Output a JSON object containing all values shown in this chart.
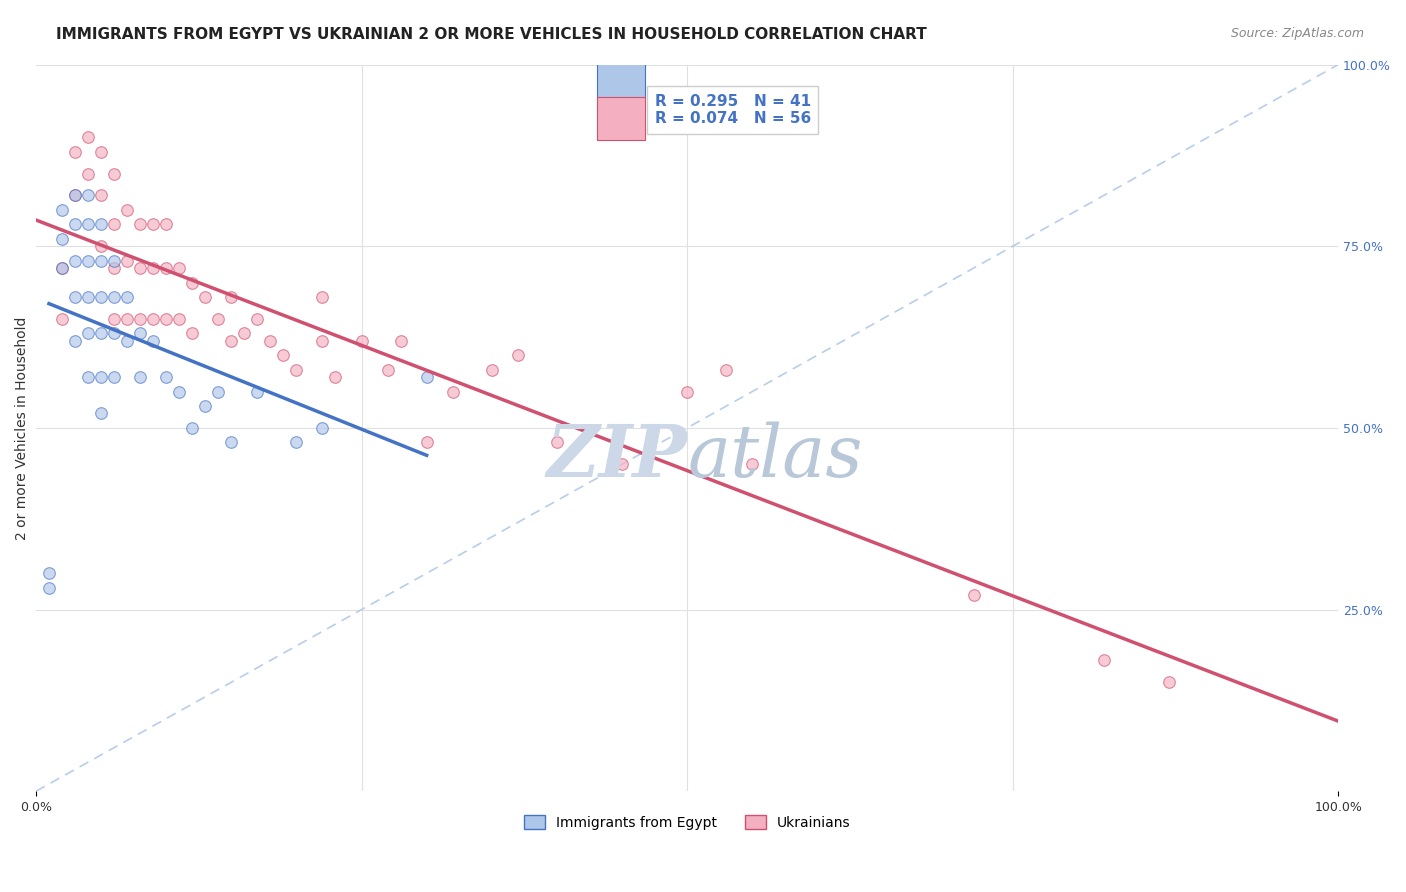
{
  "title": "IMMIGRANTS FROM EGYPT VS UKRAINIAN 2 OR MORE VEHICLES IN HOUSEHOLD CORRELATION CHART",
  "source": "Source: ZipAtlas.com",
  "ylabel": "2 or more Vehicles in Household",
  "xlim": [
    0.0,
    1.0
  ],
  "ylim": [
    0.0,
    1.0
  ],
  "ytick_labels_right": [
    "100.0%",
    "75.0%",
    "50.0%",
    "25.0%"
  ],
  "ytick_positions": [
    1.0,
    0.75,
    0.5,
    0.25
  ],
  "grid_color": "#e0e0e0",
  "background_color": "#ffffff",
  "egypt_color": "#aec6e8",
  "ukraine_color": "#f4afc0",
  "egypt_line_color": "#4472c4",
  "ukraine_line_color": "#d05070",
  "dashed_line_color": "#b0c8e8",
  "legend_egypt_label": "Immigrants from Egypt",
  "legend_ukraine_label": "Ukrainians",
  "egypt_R": 0.295,
  "egypt_N": 41,
  "ukraine_R": 0.074,
  "ukraine_N": 56,
  "egypt_scatter_x": [
    0.01,
    0.01,
    0.02,
    0.02,
    0.02,
    0.03,
    0.03,
    0.03,
    0.03,
    0.03,
    0.04,
    0.04,
    0.04,
    0.04,
    0.04,
    0.04,
    0.05,
    0.05,
    0.05,
    0.05,
    0.05,
    0.05,
    0.06,
    0.06,
    0.06,
    0.06,
    0.07,
    0.07,
    0.08,
    0.08,
    0.09,
    0.1,
    0.11,
    0.12,
    0.13,
    0.14,
    0.15,
    0.17,
    0.2,
    0.22,
    0.3
  ],
  "egypt_scatter_y": [
    0.3,
    0.28,
    0.8,
    0.76,
    0.72,
    0.82,
    0.78,
    0.73,
    0.68,
    0.62,
    0.82,
    0.78,
    0.73,
    0.68,
    0.63,
    0.57,
    0.78,
    0.73,
    0.68,
    0.63,
    0.57,
    0.52,
    0.73,
    0.68,
    0.63,
    0.57,
    0.68,
    0.62,
    0.63,
    0.57,
    0.62,
    0.57,
    0.55,
    0.5,
    0.53,
    0.55,
    0.48,
    0.55,
    0.48,
    0.5,
    0.57
  ],
  "ukraine_scatter_x": [
    0.02,
    0.02,
    0.03,
    0.03,
    0.04,
    0.04,
    0.05,
    0.05,
    0.05,
    0.06,
    0.06,
    0.06,
    0.06,
    0.07,
    0.07,
    0.07,
    0.08,
    0.08,
    0.08,
    0.09,
    0.09,
    0.09,
    0.1,
    0.1,
    0.1,
    0.11,
    0.11,
    0.12,
    0.12,
    0.13,
    0.14,
    0.15,
    0.15,
    0.16,
    0.17,
    0.18,
    0.19,
    0.2,
    0.22,
    0.22,
    0.23,
    0.25,
    0.27,
    0.28,
    0.3,
    0.32,
    0.35,
    0.37,
    0.4,
    0.45,
    0.5,
    0.53,
    0.55,
    0.72,
    0.82,
    0.87
  ],
  "ukraine_scatter_y": [
    0.72,
    0.65,
    0.88,
    0.82,
    0.9,
    0.85,
    0.88,
    0.82,
    0.75,
    0.85,
    0.78,
    0.72,
    0.65,
    0.8,
    0.73,
    0.65,
    0.78,
    0.72,
    0.65,
    0.78,
    0.72,
    0.65,
    0.78,
    0.72,
    0.65,
    0.72,
    0.65,
    0.7,
    0.63,
    0.68,
    0.65,
    0.68,
    0.62,
    0.63,
    0.65,
    0.62,
    0.6,
    0.58,
    0.68,
    0.62,
    0.57,
    0.62,
    0.58,
    0.62,
    0.48,
    0.55,
    0.58,
    0.6,
    0.48,
    0.45,
    0.55,
    0.58,
    0.45,
    0.27,
    0.18,
    0.15
  ],
  "title_fontsize": 11,
  "label_fontsize": 10,
  "tick_fontsize": 9,
  "legend_fontsize": 10,
  "marker_size": 70,
  "marker_alpha": 0.65,
  "watermark_zip_color": "#ccd8e8",
  "watermark_atlas_color": "#b8c8d8",
  "watermark_fontsize": 52
}
